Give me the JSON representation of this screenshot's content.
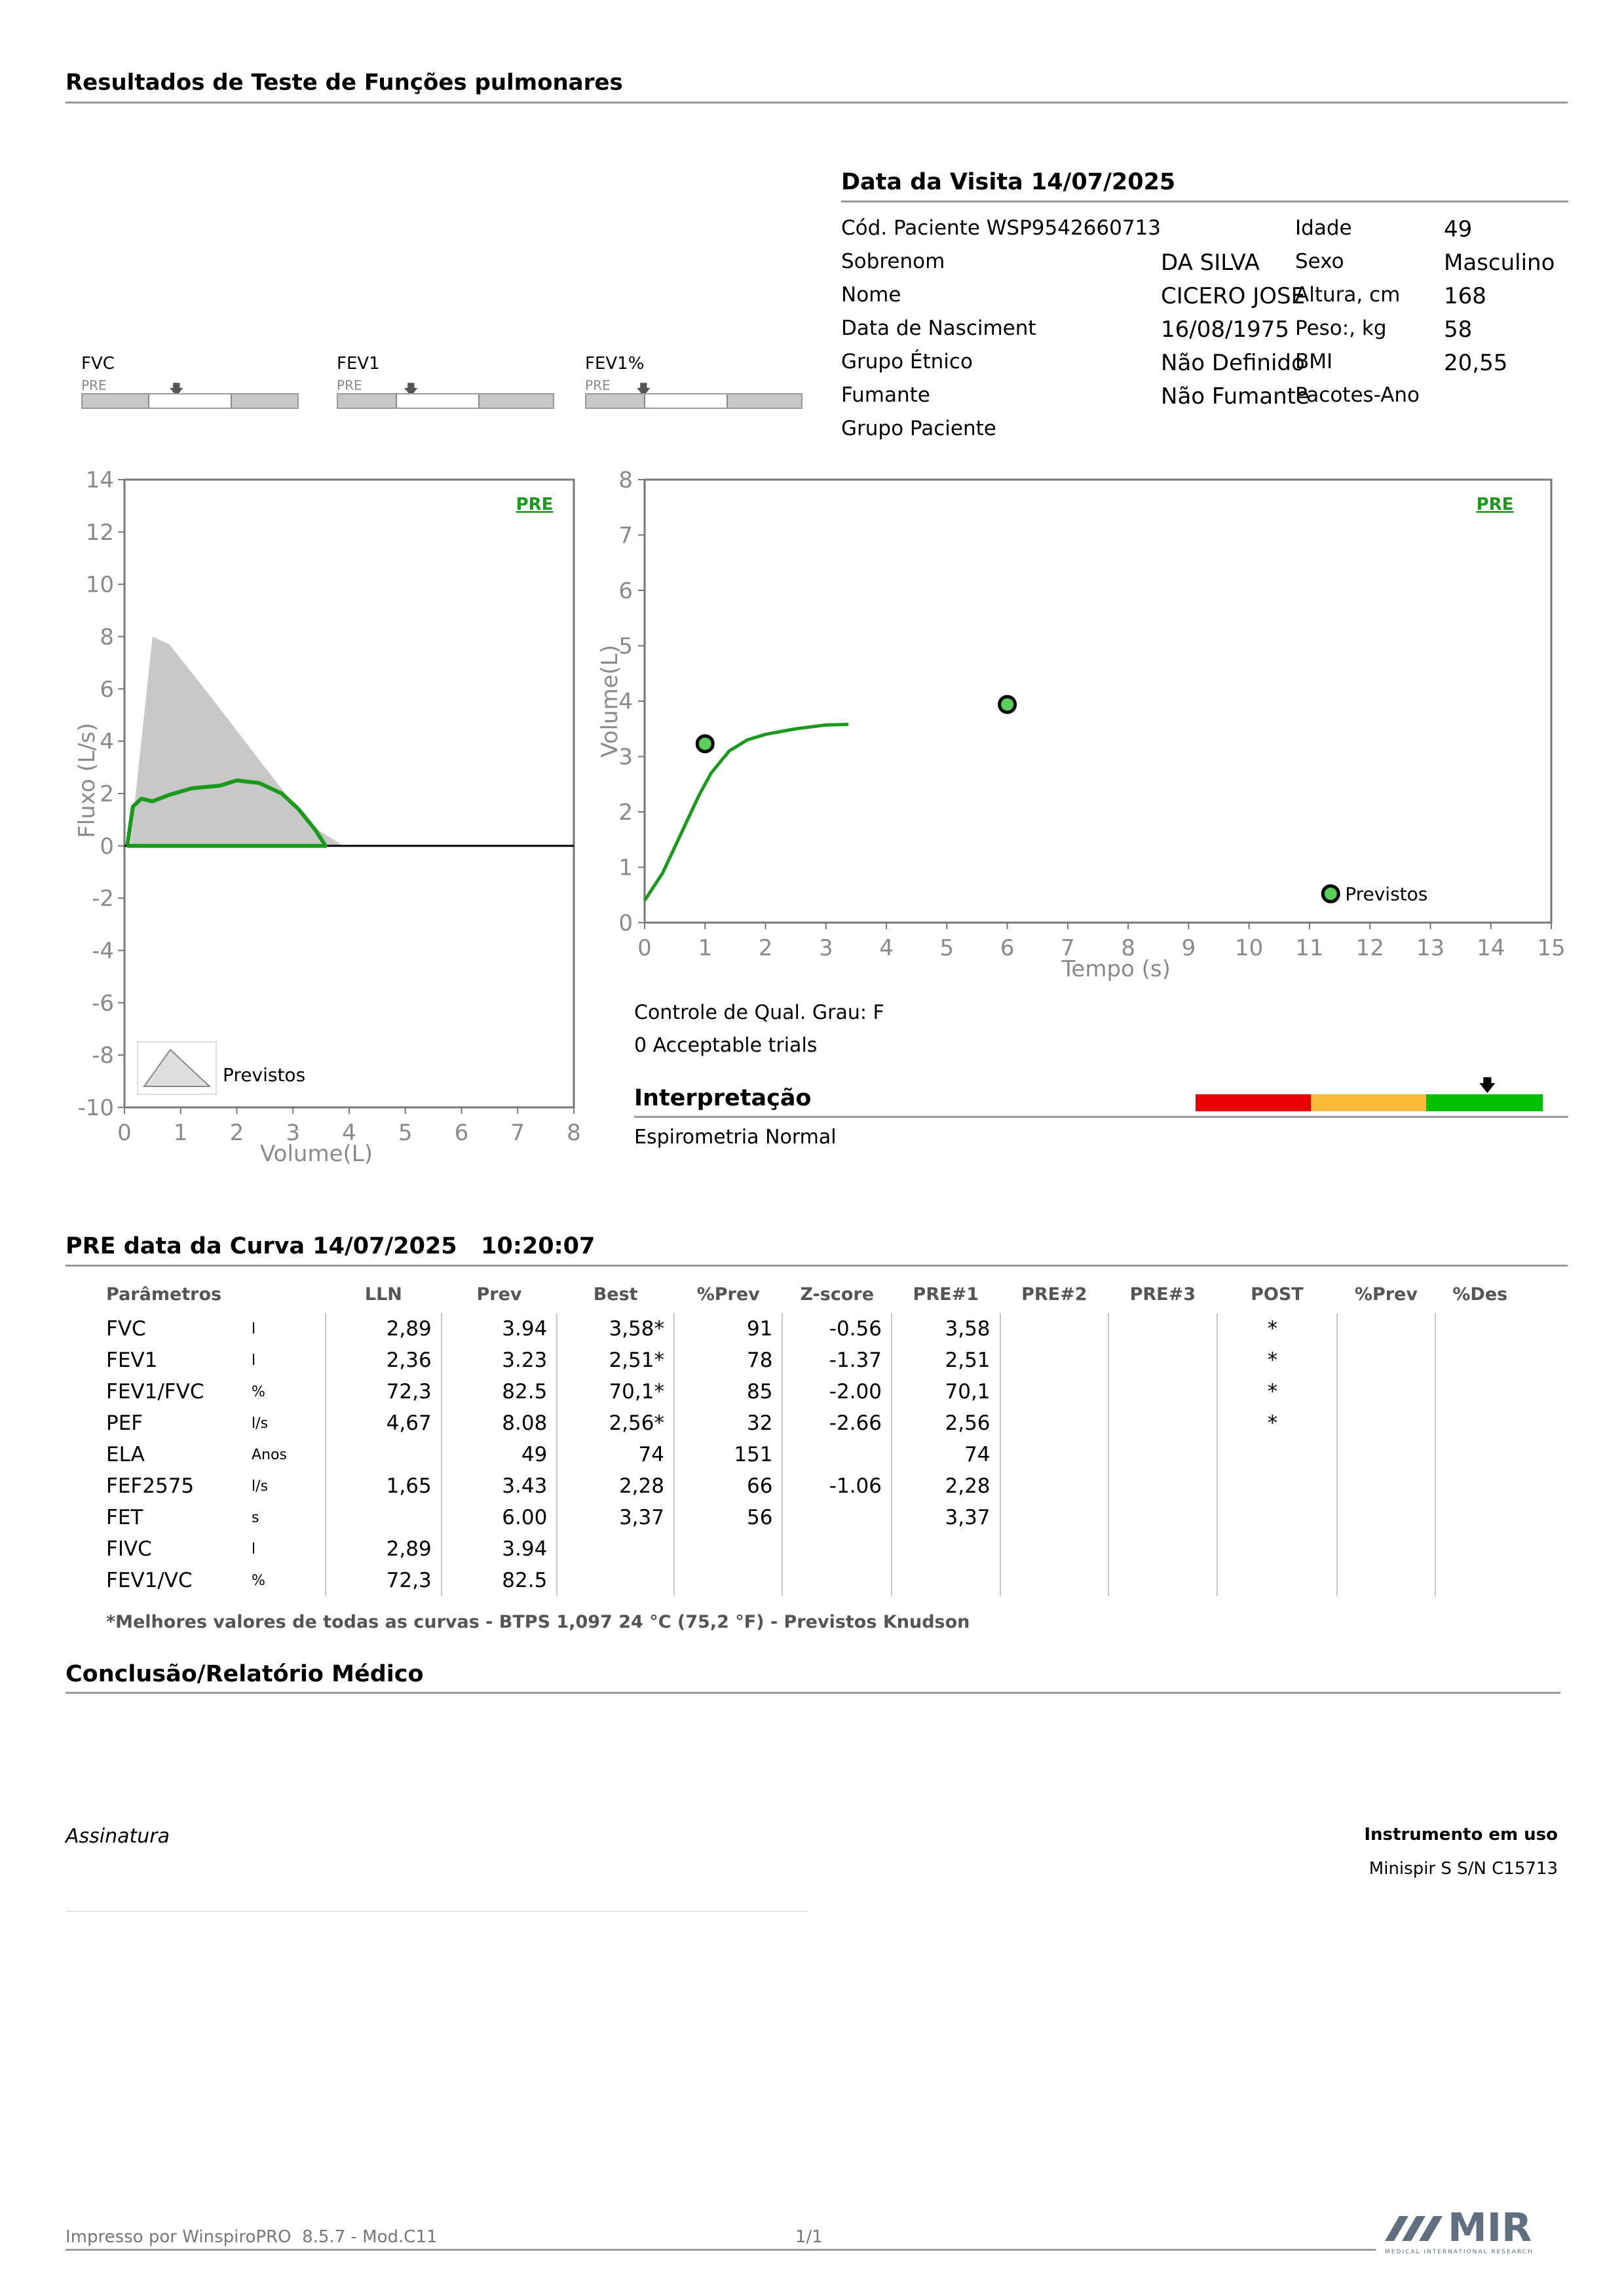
{
  "header": {
    "title": "Resultados de Teste de Funções pulmonares"
  },
  "visit": {
    "title": "Data da Visita 14/07/2025",
    "left": [
      {
        "label": "Cód. Paciente WSP9542660713",
        "value": ""
      },
      {
        "label": "Sobrenom",
        "value": "DA SILVA"
      },
      {
        "label": "Nome",
        "value": "CICERO JOSE"
      },
      {
        "label": "Data de Nasciment",
        "value": "16/08/1975"
      },
      {
        "label": "Grupo Étnico",
        "value": "Não Definido"
      },
      {
        "label": "Fumante",
        "value": "Não Fumante"
      },
      {
        "label": "Grupo Paciente",
        "value": ""
      }
    ],
    "right": [
      {
        "label": "Idade",
        "value": "49"
      },
      {
        "label": "Sexo",
        "value": "Masculino"
      },
      {
        "label": "Altura, cm",
        "value": "168"
      },
      {
        "label": "Peso:, kg",
        "value": "58"
      },
      {
        "label": "BMI",
        "value": "20,55"
      },
      {
        "label": "Pacotes-Ano",
        "value": ""
      }
    ]
  },
  "mini_bars": [
    {
      "label": "FVC",
      "tag": "PRE"
    },
    {
      "label": "FEV1",
      "tag": "PRE"
    },
    {
      "label": "FEV1%",
      "tag": "PRE"
    }
  ],
  "chart_data": [
    {
      "type": "line",
      "xlabel": "Volume(L)",
      "ylabel": "Fluxo (L/s)",
      "xlim": [
        0,
        8
      ],
      "ylim": [
        -10,
        14
      ],
      "x_ticks": [
        "0",
        "1",
        "2",
        "3",
        "4",
        "5",
        "6",
        "7",
        "8"
      ],
      "y_ticks": [
        "14",
        "12",
        "10",
        "8",
        "6",
        "4",
        "2",
        "0",
        "-2",
        "-4",
        "-6",
        "-8",
        "-10"
      ],
      "tag": "PRE",
      "legend": "Previstos",
      "series": [
        {
          "name": "Previstos",
          "color": "#c8c8c8",
          "x": [
            0.1,
            0.5,
            0.8,
            1.5,
            2.5,
            3.3,
            3.9
          ],
          "y": [
            0,
            8.0,
            7.7,
            5.8,
            3.0,
            0.8,
            0
          ]
        },
        {
          "name": "PRE",
          "color": "#1a9a1a",
          "x": [
            0.05,
            0.15,
            0.3,
            0.5,
            0.8,
            1.2,
            1.7,
            2.0,
            2.4,
            2.8,
            3.1,
            3.4,
            3.58,
            3.0,
            2.0,
            1.0,
            0.05
          ],
          "y": [
            0,
            1.5,
            1.8,
            1.7,
            1.95,
            2.2,
            2.3,
            2.5,
            2.4,
            2.0,
            1.4,
            0.6,
            0,
            0,
            0,
            0,
            0
          ]
        }
      ]
    },
    {
      "type": "line",
      "xlabel": "Tempo (s)",
      "ylabel": "Volume(L)",
      "xlim": [
        0,
        15
      ],
      "ylim": [
        0,
        8
      ],
      "x_ticks": [
        "0",
        "1",
        "2",
        "3",
        "4",
        "5",
        "6",
        "7",
        "8",
        "9",
        "10",
        "11",
        "12",
        "13",
        "14",
        "15"
      ],
      "y_ticks": [
        "8",
        "7",
        "6",
        "5",
        "4",
        "3",
        "2",
        "1",
        "0"
      ],
      "tag": "PRE",
      "legend": "Previstos",
      "series": [
        {
          "name": "PRE",
          "color": "#1a9a1a",
          "x": [
            0,
            0.3,
            0.6,
            0.9,
            1.1,
            1.4,
            1.7,
            2.0,
            2.5,
            3.0,
            3.37
          ],
          "y": [
            0.4,
            0.9,
            1.6,
            2.3,
            2.7,
            3.1,
            3.3,
            3.4,
            3.5,
            3.57,
            3.58
          ]
        },
        {
          "name": "Previstos",
          "color": "#5ad05a",
          "points": [
            {
              "x": 1.0,
              "y": 3.23
            },
            {
              "x": 6.0,
              "y": 3.94
            }
          ]
        }
      ]
    }
  ],
  "quality": {
    "line1": "Controle de Qual. Grau: F",
    "line2": "0 Acceptable trials"
  },
  "interpretation": {
    "title": "Interpretação",
    "text": "Espirometria Normal",
    "scale_colors": [
      "#e80000",
      "#f9bb38",
      "#00c000"
    ]
  },
  "results": {
    "title": "PRE data da Curva 14/07/2025   10:20:07",
    "headers": [
      "Parâmetros",
      "",
      "LLN",
      "Prev",
      "Best",
      "%Prev",
      "Z-score",
      "PRE#1",
      "PRE#2",
      "PRE#3",
      "POST",
      "%Prev",
      "%Des"
    ],
    "rows": [
      [
        "FVC",
        "l",
        "2,89",
        "3.94",
        "3,58*",
        "91",
        "-0.56",
        "3,58",
        "",
        "",
        "*",
        "",
        ""
      ],
      [
        "FEV1",
        "l",
        "2,36",
        "3.23",
        "2,51*",
        "78",
        "-1.37",
        "2,51",
        "",
        "",
        "*",
        "",
        ""
      ],
      [
        "FEV1/FVC",
        "%",
        "72,3",
        "82.5",
        "70,1*",
        "85",
        "-2.00",
        "70,1",
        "",
        "",
        "*",
        "",
        ""
      ],
      [
        "PEF",
        "l/s",
        "4,67",
        "8.08",
        "2,56*",
        "32",
        "-2.66",
        "2,56",
        "",
        "",
        "*",
        "",
        ""
      ],
      [
        "ELA",
        "Anos",
        "",
        "49",
        "74",
        "151",
        "",
        "74",
        "",
        "",
        "",
        "",
        ""
      ],
      [
        "FEF2575",
        "l/s",
        "1,65",
        "3.43",
        "2,28",
        "66",
        "-1.06",
        "2,28",
        "",
        "",
        "",
        "",
        ""
      ],
      [
        "FET",
        "s",
        "",
        "6.00",
        "3,37",
        "56",
        "",
        "3,37",
        "",
        "",
        "",
        "",
        ""
      ],
      [
        "FIVC",
        "l",
        "2,89",
        "3.94",
        "",
        "",
        "",
        "",
        "",
        "",
        "",
        "",
        ""
      ],
      [
        "FEV1/VC",
        "%",
        "72,3",
        "82.5",
        "",
        "",
        "",
        "",
        "",
        "",
        "",
        "",
        ""
      ]
    ],
    "footnote": "*Melhores valores de todas as curvas - BTPS  1,097  24 °C  (75,2 °F) - Previstos Knudson"
  },
  "conclusion": {
    "title": "Conclusão/Relatório Médico"
  },
  "signature": {
    "label": "Assinatura"
  },
  "instrument": {
    "label": "Instrumento em uso",
    "value": "Minispir S S/N C15713"
  },
  "footer": {
    "printed_by": "Impresso por WinspiroPRO  8.5.7 - Mod.C11",
    "page": "1/1"
  },
  "logo": {
    "text": "MIR",
    "subtitle": "MEDICAL INTERNATIONAL RESEARCH",
    "color": "#5f6f80"
  }
}
